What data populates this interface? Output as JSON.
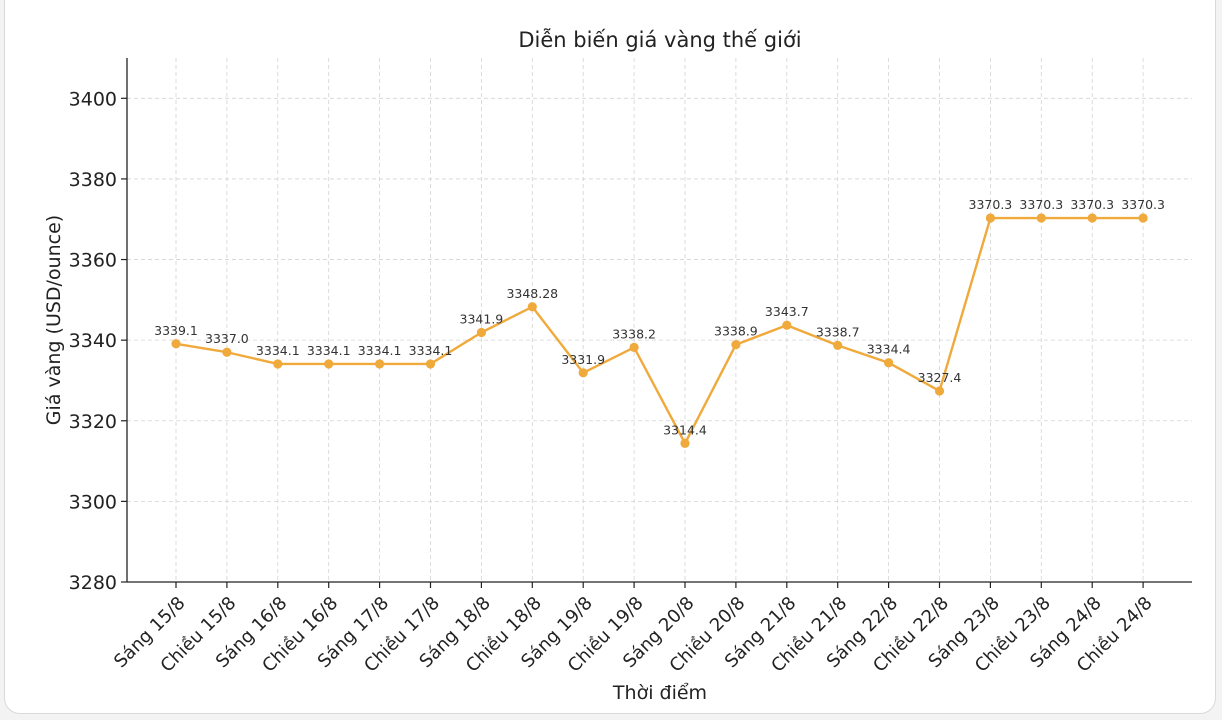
{
  "chart_data": {
    "type": "line",
    "title": "Diễn biến giá vàng thế giới",
    "xlabel": "Thời điểm",
    "ylabel": "Giá vàng (USD/ounce)",
    "categories": [
      "Sáng 15/8",
      "Chiều 15/8",
      "Sáng 16/8",
      "Chiều 16/8",
      "Sáng 17/8",
      "Chiều 17/8",
      "Sáng 18/8",
      "Chiều 18/8",
      "Sáng 19/8",
      "Chiều 19/8",
      "Sáng 20/8",
      "Chiều 20/8",
      "Sáng 21/8",
      "Chiều 21/8",
      "Sáng 22/8",
      "Chiều 22/8",
      "Sáng 23/8",
      "Chiều 23/8",
      "Sáng 24/8",
      "Chiều 24/8"
    ],
    "values": [
      3339.1,
      3337.0,
      3334.1,
      3334.1,
      3334.1,
      3334.1,
      3341.9,
      3348.28,
      3331.9,
      3338.2,
      3314.4,
      3338.9,
      3343.7,
      3338.7,
      3334.4,
      3327.4,
      3370.3,
      3370.3,
      3370.3,
      3370.3
    ],
    "data_labels": [
      "3339.1",
      "3337.0",
      "3334.1",
      "3334.1",
      "3334.1",
      "3334.1",
      "3341.9",
      "3348.28",
      "3331.9",
      "3338.2",
      "3314.4",
      "3338.9",
      "3343.7",
      "3338.7",
      "3334.4",
      "3327.4",
      "3370.3",
      "3370.3",
      "3370.3",
      "3370.3"
    ],
    "yticks": [
      3280,
      3300,
      3320,
      3340,
      3360,
      3380,
      3400
    ],
    "ylim": [
      3280,
      3410
    ],
    "grid": true,
    "line_color": "#f0a93b",
    "marker_color": "#f0a93b"
  }
}
